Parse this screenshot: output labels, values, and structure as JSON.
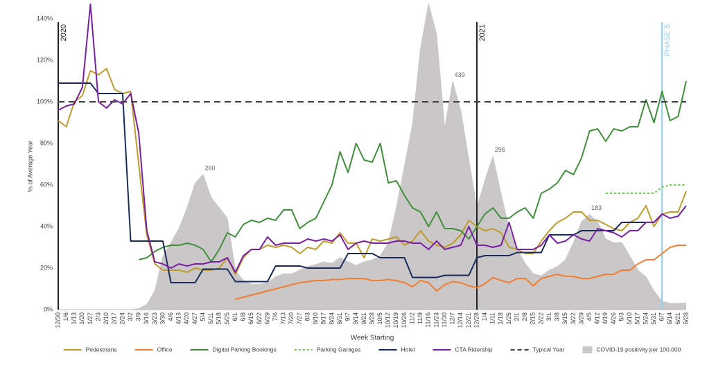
{
  "chart_data": {
    "type": "line",
    "y_label": "% of Average Year",
    "x_label": "Week Starting",
    "categories": [
      "12/30",
      "1/6",
      "1/13",
      "1/20",
      "1/27",
      "2/3",
      "2/10",
      "2/17",
      "2/24",
      "3/2",
      "3/9",
      "3/16",
      "3/23",
      "3/30",
      "4/6",
      "4/13",
      "4/20",
      "4/27",
      "5/4",
      "5/11",
      "5/18",
      "5/25",
      "6/1",
      "6/8",
      "6/15",
      "6/22",
      "6/29",
      "7/6",
      "7/13",
      "7/20",
      "7/27",
      "8/3",
      "8/10",
      "8/17",
      "8/24",
      "8/31",
      "9/7",
      "9/14",
      "9/21",
      "9/28",
      "10/5",
      "10/12",
      "10/19",
      "10/26",
      "11/2",
      "11/9",
      "11/16",
      "11/23",
      "11/30",
      "12/7",
      "12/14",
      "12/21",
      "12/28",
      "1/4",
      "1/11",
      "1/18",
      "1/25",
      "2/1",
      "2/8",
      "2/15",
      "2/22",
      "3/1",
      "3/8",
      "3/15",
      "3/22",
      "3/29",
      "4/5",
      "4/12",
      "4/19",
      "4/26",
      "5/3",
      "5/10",
      "5/17",
      "5/24",
      "5/31",
      "6/7",
      "6/14",
      "6/21",
      "6/28"
    ],
    "ylim": [
      0,
      140
    ],
    "yticks": [
      {
        "value": 0,
        "label": "0%"
      },
      {
        "value": 20,
        "label": "20%"
      },
      {
        "value": 40,
        "label": "40%"
      },
      {
        "value": 60,
        "label": "60%"
      },
      {
        "value": 80,
        "label": "80%"
      },
      {
        "value": 100,
        "label": "100%"
      },
      {
        "value": 120,
        "label": "120%"
      },
      {
        "value": 140,
        "label": "140%"
      }
    ],
    "y2lim": [
      0,
      560
    ],
    "grid": false,
    "legend": "bottom",
    "series": [
      {
        "name": "Pedestrians",
        "color": "#bf9b2a",
        "style": "solid",
        "values": [
          91,
          88,
          100,
          103,
          115,
          113,
          116,
          106,
          104,
          105,
          70,
          36,
          22,
          19,
          19,
          19,
          18,
          20,
          19,
          19,
          20,
          25,
          17,
          25,
          29,
          29,
          31,
          30,
          31,
          30,
          27,
          30,
          29,
          33,
          32,
          37,
          32,
          32,
          25,
          34,
          33,
          34,
          35,
          31,
          33,
          38,
          33,
          31,
          30,
          32,
          36,
          43,
          40,
          38,
          39,
          37,
          30,
          29,
          27,
          27,
          33,
          38,
          42,
          44,
          47,
          47,
          43,
          43,
          41,
          39,
          38,
          42,
          44,
          50,
          40,
          46,
          47,
          47,
          57
        ]
      },
      {
        "name": "Office",
        "color": "#f47c30",
        "style": "solid",
        "values": [
          null,
          null,
          null,
          null,
          null,
          null,
          null,
          null,
          null,
          null,
          null,
          null,
          null,
          null,
          null,
          null,
          null,
          null,
          null,
          null,
          null,
          null,
          5,
          6,
          7,
          8,
          9,
          10,
          11,
          12,
          13,
          13.5,
          14,
          14,
          14.5,
          14.5,
          15,
          15,
          15,
          14,
          14,
          14.5,
          14,
          13,
          11,
          14,
          13,
          9,
          12,
          13.5,
          13,
          11.5,
          10.5,
          12.5,
          15.5,
          14,
          13,
          15,
          15,
          11.5,
          15,
          16,
          17,
          16,
          16,
          15,
          15,
          16,
          17,
          17,
          19,
          19,
          22,
          24,
          24,
          27,
          30,
          31,
          31
        ]
      },
      {
        "name": "Digital Parking Bookings",
        "color": "#3f8f3a",
        "style": "solid",
        "values": [
          null,
          null,
          null,
          null,
          null,
          null,
          null,
          null,
          null,
          null,
          24,
          25,
          28,
          30,
          31,
          31,
          32,
          31,
          29,
          23,
          29,
          37,
          35,
          41,
          43,
          42,
          44,
          43,
          48,
          48,
          39,
          42,
          44,
          52,
          60,
          76,
          66,
          80,
          72,
          71,
          80,
          61,
          62,
          55,
          49,
          47,
          40,
          47,
          39,
          39,
          38,
          34,
          40,
          46,
          49,
          44,
          44,
          47,
          49,
          44,
          56,
          58,
          61,
          67,
          65,
          73,
          86,
          87,
          81,
          87,
          86,
          88,
          88,
          101,
          90,
          105,
          91,
          93,
          110
        ]
      },
      {
        "name": "Parking Garages",
        "color": "#66cc44",
        "style": "dotted",
        "values": [
          null,
          null,
          null,
          null,
          null,
          null,
          null,
          null,
          null,
          null,
          null,
          null,
          null,
          null,
          null,
          null,
          null,
          null,
          null,
          null,
          null,
          null,
          null,
          null,
          null,
          null,
          null,
          null,
          null,
          null,
          null,
          null,
          null,
          null,
          null,
          null,
          null,
          null,
          null,
          null,
          null,
          null,
          null,
          null,
          null,
          null,
          null,
          null,
          null,
          null,
          null,
          null,
          null,
          null,
          null,
          null,
          null,
          null,
          null,
          null,
          null,
          null,
          null,
          null,
          null,
          null,
          null,
          null,
          56,
          56,
          56,
          56,
          56,
          56,
          56,
          59,
          60,
          60,
          60
        ]
      },
      {
        "name": "Hotel",
        "color": "#1a2a5c",
        "style": "solid",
        "values": [
          109,
          109,
          109,
          109,
          109,
          104,
          104,
          104,
          104,
          33,
          33,
          33,
          33,
          33,
          13,
          13,
          13,
          13,
          19.5,
          19.5,
          19.5,
          19.5,
          13.5,
          13.5,
          13.5,
          13.5,
          13.5,
          21,
          21,
          21,
          21,
          20,
          20,
          20,
          20,
          20,
          27,
          27,
          27,
          27,
          25,
          25,
          25,
          25,
          15.5,
          15.5,
          15.5,
          15.5,
          16.5,
          16.5,
          16.5,
          16.5,
          25,
          26,
          26,
          26,
          26,
          27.5,
          27.5,
          27.5,
          27.5,
          36,
          36,
          36,
          36,
          38,
          38,
          38,
          38,
          38,
          42,
          42,
          42,
          42,
          42,
          46,
          null,
          null,
          null
        ]
      },
      {
        "name": "CTA Ridership",
        "color": "#7a1fa2",
        "style": "solid",
        "values": [
          96,
          98,
          99,
          107,
          147,
          100,
          97,
          101,
          99,
          104,
          85,
          38,
          23,
          22,
          20,
          22,
          21,
          22,
          22,
          23,
          23,
          25,
          18,
          26,
          29,
          29,
          35,
          31,
          32,
          32,
          32,
          34,
          33,
          34,
          33,
          36,
          29,
          32,
          33,
          32,
          32,
          32,
          33,
          33,
          32,
          32,
          29,
          33,
          29,
          30,
          31,
          40,
          31,
          31,
          30,
          31,
          42,
          29,
          29,
          29,
          31,
          36,
          32,
          33,
          36,
          34,
          33,
          39,
          38,
          37,
          35,
          38,
          38,
          42,
          42,
          46,
          44,
          45,
          50
        ]
      },
      {
        "name": "Typical Year",
        "color": "#404040",
        "style": "dashed",
        "value": 100
      },
      {
        "name": "COVID-19 positivity per 100,000",
        "color": "#c9c7c7",
        "style": "area",
        "axis": "y2",
        "values": [
          null,
          null,
          null,
          null,
          null,
          null,
          null,
          null,
          null,
          0,
          2,
          10,
          36,
          103,
          129,
          156,
          196,
          243,
          260,
          216,
          196,
          176,
          76,
          56,
          49,
          49,
          52,
          63,
          69,
          69,
          76,
          83,
          87,
          92,
          89,
          100,
          92,
          85,
          92,
          96,
          103,
          129,
          196,
          276,
          356,
          503,
          589,
          529,
          349,
          439,
          383,
          289,
          196,
          249,
          295,
          223,
          156,
          116,
          89,
          69,
          65,
          76,
          83,
          96,
          129,
          169,
          183,
          169,
          136,
          129,
          129,
          103,
          76,
          63,
          36,
          16,
          12,
          12,
          13
        ]
      }
    ],
    "annotations": [
      {
        "x": "5/4",
        "value": 260
      },
      {
        "x": "12/7",
        "value": 439
      },
      {
        "x": "1/11",
        "value": 295
      },
      {
        "x": "4/5",
        "value": 183
      }
    ],
    "markers": [
      {
        "x": "12/30",
        "label": "2020",
        "color": "#222222"
      },
      {
        "x": "12/28",
        "label": "2021",
        "color": "#222222"
      },
      {
        "x": "6/7",
        "label": "PHASE 5",
        "color": "#8fd0ee"
      }
    ]
  }
}
